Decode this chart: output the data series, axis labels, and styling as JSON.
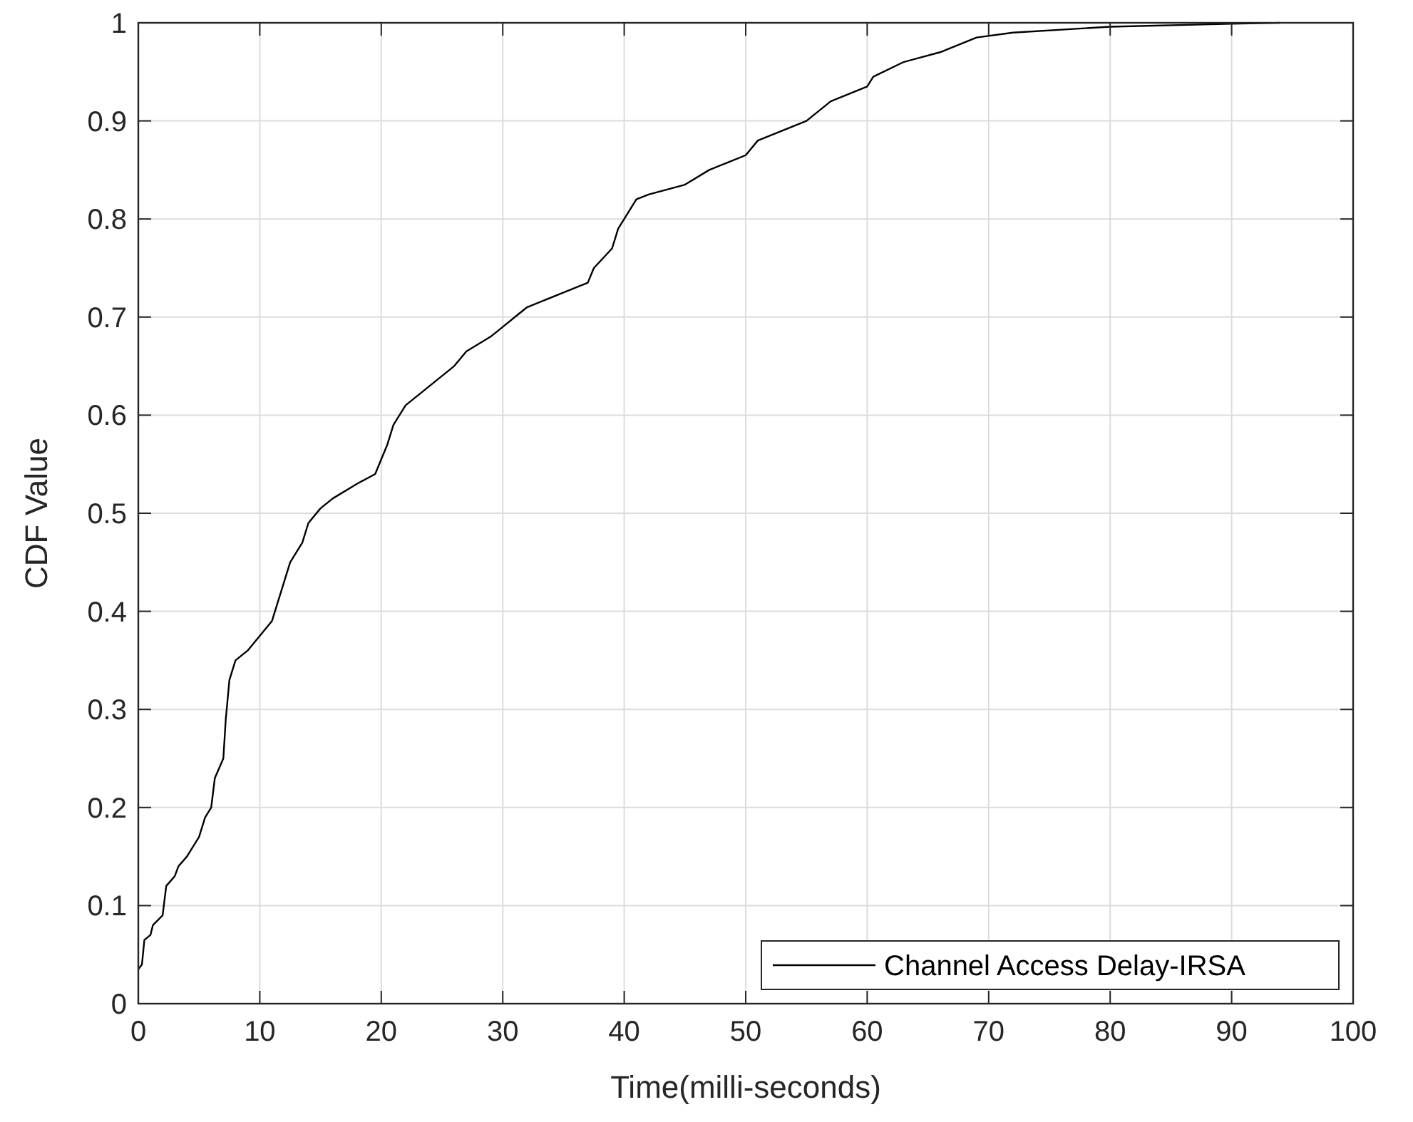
{
  "chart_data": {
    "type": "line",
    "xlabel": "Time(milli-seconds)",
    "ylabel": "CDF Value",
    "xlim": [
      0,
      100
    ],
    "ylim": [
      0,
      1
    ],
    "xticks": [
      0,
      10,
      20,
      30,
      40,
      50,
      60,
      70,
      80,
      90,
      100
    ],
    "yticks": [
      0,
      0.1,
      0.2,
      0.3,
      0.4,
      0.5,
      0.6,
      0.7,
      0.8,
      0.9,
      1
    ],
    "grid": true,
    "legend": "bottom right",
    "line_style": "solid",
    "marker": "none",
    "series": [
      {
        "name": "Channel Access Delay-IRSA",
        "color": "#000000",
        "x": [
          0,
          0.3,
          0.5,
          1,
          1.2,
          2,
          2.3,
          3,
          3.3,
          4,
          4.5,
          5,
          5.5,
          6,
          6.3,
          7,
          7.2,
          7.5,
          8,
          9,
          10,
          11,
          11.5,
          12,
          12.5,
          13.5,
          14,
          15,
          16,
          18,
          19.5,
          20,
          20.5,
          21,
          22,
          23,
          24,
          25,
          26,
          27,
          29,
          30,
          31,
          32,
          35,
          37,
          37.5,
          39,
          39.5,
          40,
          41,
          42,
          45,
          47,
          50,
          51,
          53,
          55,
          57,
          60,
          60.5,
          63,
          66,
          69,
          72,
          80,
          90,
          94
        ],
        "values": [
          0.035,
          0.04,
          0.065,
          0.07,
          0.08,
          0.09,
          0.12,
          0.13,
          0.14,
          0.15,
          0.16,
          0.17,
          0.19,
          0.2,
          0.23,
          0.25,
          0.29,
          0.33,
          0.35,
          0.36,
          0.375,
          0.39,
          0.41,
          0.43,
          0.45,
          0.47,
          0.49,
          0.505,
          0.515,
          0.53,
          0.54,
          0.555,
          0.57,
          0.59,
          0.61,
          0.62,
          0.63,
          0.64,
          0.65,
          0.665,
          0.68,
          0.69,
          0.7,
          0.71,
          0.725,
          0.735,
          0.75,
          0.77,
          0.79,
          0.8,
          0.82,
          0.825,
          0.835,
          0.85,
          0.865,
          0.88,
          0.89,
          0.9,
          0.92,
          0.935,
          0.945,
          0.96,
          0.97,
          0.985,
          0.99,
          0.996,
          0.999,
          1
        ]
      }
    ]
  }
}
